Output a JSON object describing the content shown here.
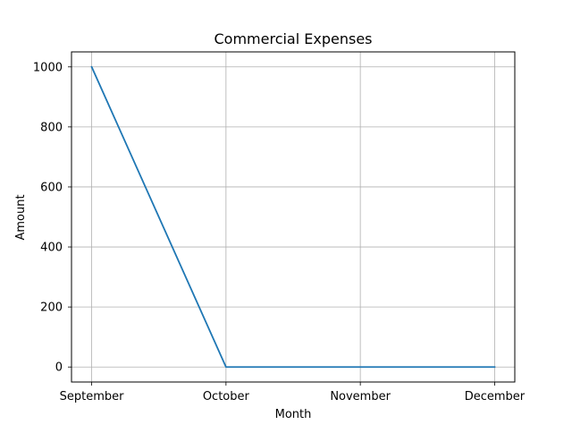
{
  "chart_data": {
    "type": "line",
    "title": "Commercial Expenses",
    "xlabel": "Month",
    "ylabel": "Amount",
    "categories": [
      "September",
      "October",
      "November",
      "December"
    ],
    "series": [
      {
        "values": [
          1000,
          0,
          0,
          0
        ],
        "color": "#1f77b4"
      }
    ],
    "ylim": [
      -50,
      1050
    ],
    "yticks": [
      0,
      200,
      400,
      600,
      800,
      1000
    ],
    "grid": true,
    "legend": "none"
  }
}
